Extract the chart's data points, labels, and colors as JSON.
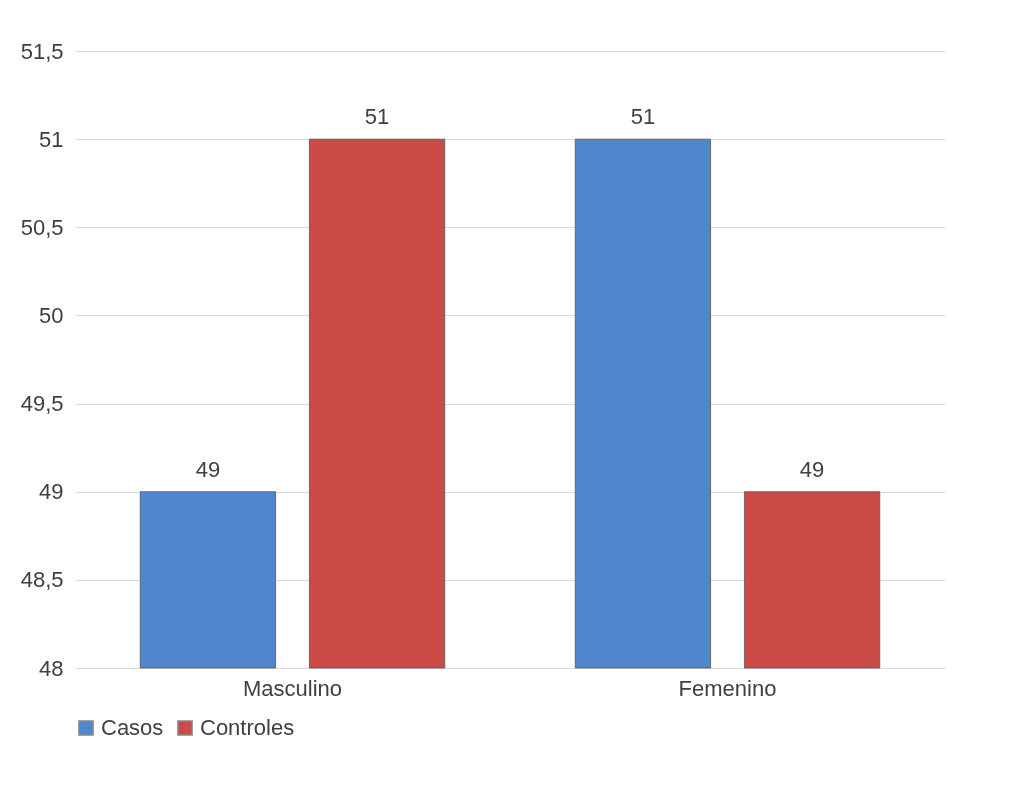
{
  "chart_data": {
    "type": "bar",
    "categories": [
      "Masculino",
      "Femenino"
    ],
    "series": [
      {
        "name": "Casos",
        "color": "#4f86cc",
        "values": [
          49,
          51
        ]
      },
      {
        "name": "Controles",
        "color": "#cc4a46",
        "values": [
          51,
          49
        ]
      }
    ],
    "ylim": [
      48,
      51.5
    ],
    "yticks": [
      48,
      {
        "value": 48.5,
        "label": "48,5"
      },
      49,
      {
        "value": 49.5,
        "label": "49,5"
      },
      50,
      {
        "value": 50.5,
        "label": "50,5"
      },
      51,
      {
        "value": 51.5,
        "label": "51,5"
      }
    ],
    "grid": "y",
    "legend": "bottom",
    "data_labels": true
  }
}
